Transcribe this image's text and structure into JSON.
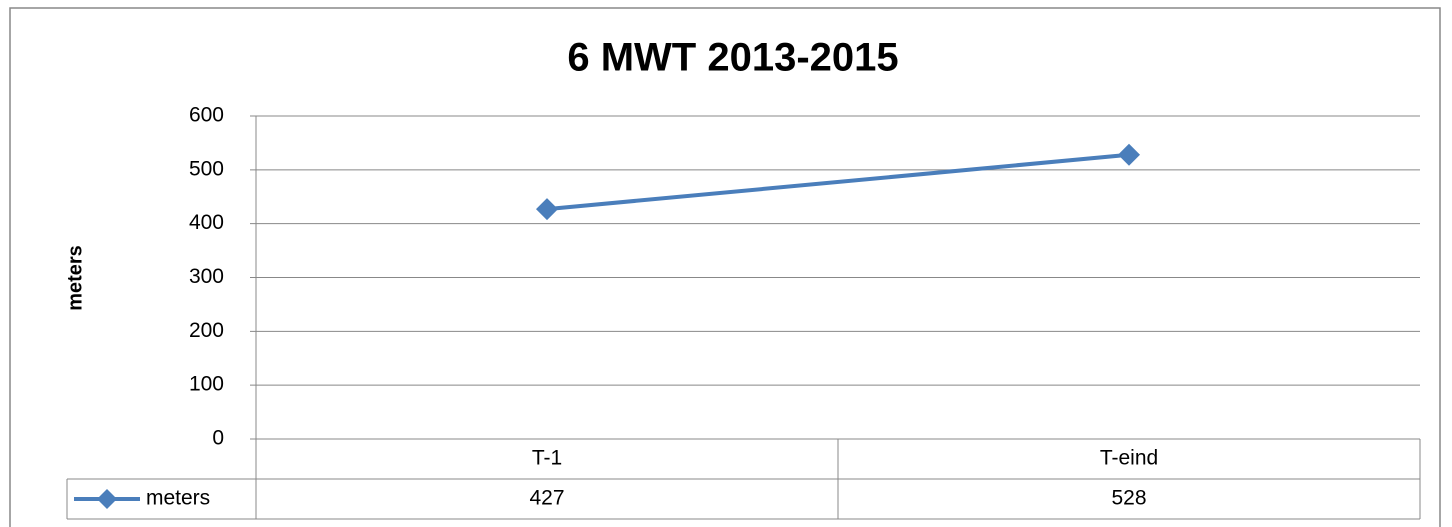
{
  "chart_data": {
    "type": "line",
    "title": "6 MWT 2013-2015",
    "y_label": "meters",
    "categories": [
      "T-1",
      "T-eind"
    ],
    "series": [
      {
        "name": "meters",
        "color": "#4a7ebb",
        "values": [
          427,
          528
        ]
      }
    ],
    "ylim": [
      0,
      600
    ],
    "yticks": [
      0,
      100,
      200,
      300,
      400,
      500,
      600
    ],
    "grid": true
  }
}
